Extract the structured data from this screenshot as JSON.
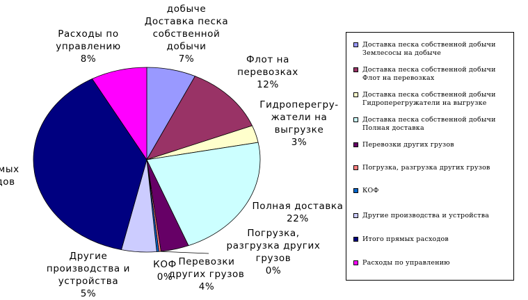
{
  "chart_data": {
    "type": "pie",
    "slices": [
      {
        "name": "Доставка песка собственной добычи Землесосы на добыче",
        "value": 7,
        "color": "#9999ff",
        "label_lines": [
          "добыче",
          "Доставка песка",
          "собственной",
          "добычи",
          "7%"
        ]
      },
      {
        "name": "Доставка песка собственной добычи Флот на перевозках",
        "value": 12,
        "color": "#993366",
        "label_lines": [
          "Флот на",
          "перевозках",
          "12%"
        ]
      },
      {
        "name": "Доставка песка собственной добычи Гидроперегружатели на выгрузке",
        "value": 3,
        "color": "#ffffcc",
        "label_lines": [
          "Гидроперегру-",
          "жатели на",
          "выгрузке",
          "3%"
        ]
      },
      {
        "name": "Доставка песка собственной добычи Полная доставка",
        "value": 22,
        "color": "#ccffff",
        "label_lines": [
          "Полная доставка",
          "22%"
        ]
      },
      {
        "name": "Перевозки других грузов",
        "value": 4,
        "color": "#660066",
        "label_lines": [
          "Перевозки",
          "других грузов",
          "4%"
        ]
      },
      {
        "name": "Погрузка, разгрузка других грузов",
        "value": 0.3,
        "color": "#ff8080",
        "label_lines": [
          "Погрузка,",
          "разгрузка других",
          "грузов",
          "0%"
        ]
      },
      {
        "name": "КОФ",
        "value": 0.3,
        "color": "#0066cc",
        "label_lines": [
          "КОФ",
          "0%"
        ]
      },
      {
        "name": "Другие производства и устройства",
        "value": 5,
        "color": "#ccccff",
        "label_lines": [
          "Другие",
          "производства и",
          "устройства",
          "5%"
        ]
      },
      {
        "name": "Итого прямых расходов",
        "value": 38.4,
        "color": "#000080",
        "label_lines": [
          "ямых",
          "дов",
          ""
        ]
      },
      {
        "name": "Расходы по управлению",
        "value": 8,
        "color": "#ff00ff",
        "label_lines": [
          "Расходы по",
          "управлению",
          "8%"
        ]
      }
    ],
    "legend": [
      {
        "text": "Доставка песка собственной добычи Землесосы на добыче",
        "color": "#9999ff"
      },
      {
        "text": "Доставка песка собственной добычи Флот на перевозках",
        "color": "#993366"
      },
      {
        "text": "Доставка песка собственной добычи Гидроперегружатели на выгрузке",
        "color": "#ffffcc"
      },
      {
        "text": "Доставка песка собственной добычи Полная доставка",
        "color": "#ccffff"
      },
      {
        "text": "Перевозки других грузов",
        "color": "#660066"
      },
      {
        "text": "Погрузка, разгрузка других грузов",
        "color": "#ff8080"
      },
      {
        "text": "КОФ",
        "color": "#0066cc"
      },
      {
        "text": "Другие производства и устройства",
        "color": "#ccccff"
      },
      {
        "text": "Итого прямых расходов",
        "color": "#000080"
      },
      {
        "text": "Расходы по управлению",
        "color": "#ff00ff"
      }
    ],
    "legend_position": "right"
  }
}
